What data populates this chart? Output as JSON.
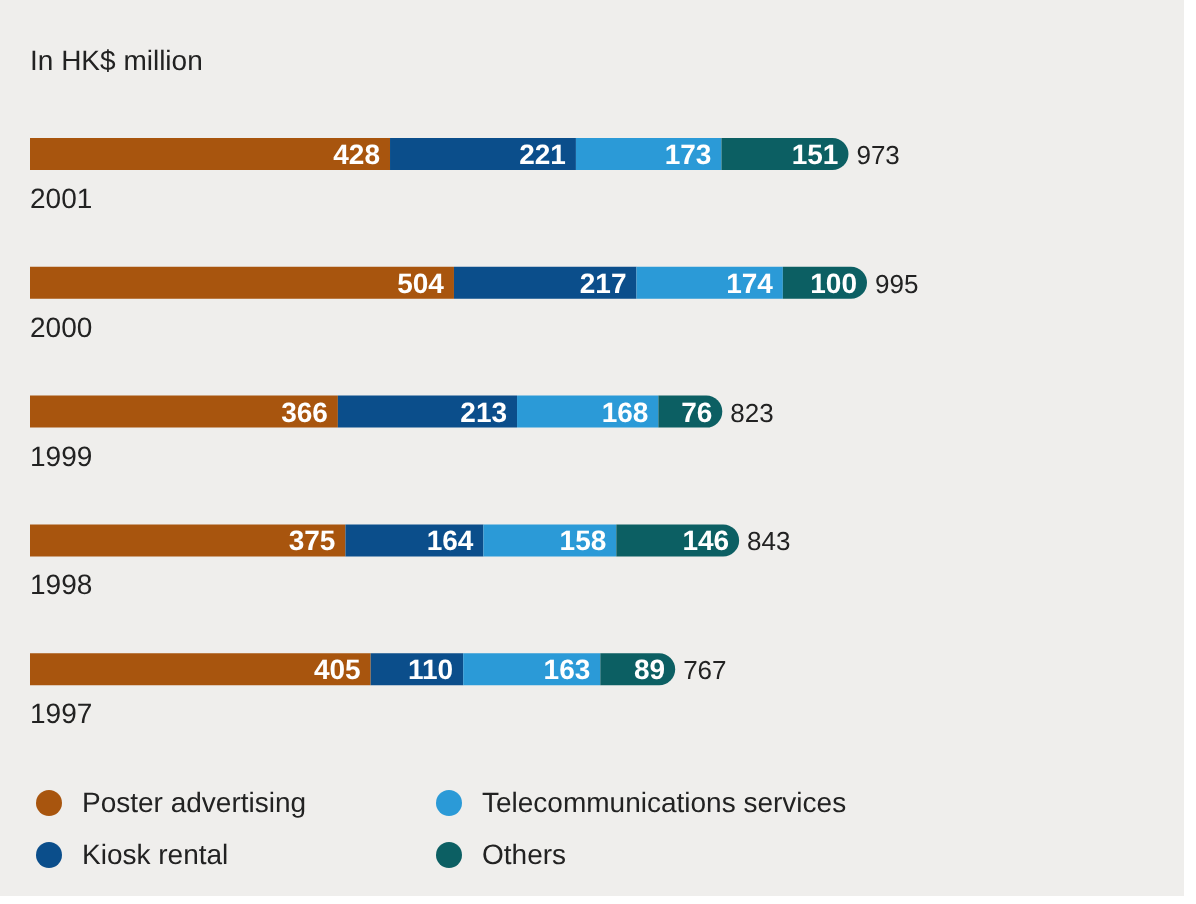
{
  "chart_data": {
    "type": "bar",
    "orientation": "horizontal",
    "stacked": true,
    "title": "In HK$ million",
    "categories": [
      "2001",
      "2000",
      "1999",
      "1998",
      "1997"
    ],
    "series": [
      {
        "name": "Poster advertising",
        "color": "#a8550e",
        "values": [
          428,
          504,
          366,
          375,
          405
        ]
      },
      {
        "name": "Kiosk rental",
        "color": "#0b4e8b",
        "values": [
          221,
          217,
          213,
          164,
          110
        ]
      },
      {
        "name": "Telecommunications services",
        "color": "#2b9ad7",
        "values": [
          173,
          174,
          168,
          158,
          163
        ]
      },
      {
        "name": "Others",
        "color": "#0c5f63",
        "values": [
          151,
          100,
          76,
          146,
          89
        ]
      }
    ],
    "totals": [
      "973",
      "995",
      "823",
      "843",
      "767"
    ],
    "data_labels": true,
    "legend": "bottom left"
  }
}
